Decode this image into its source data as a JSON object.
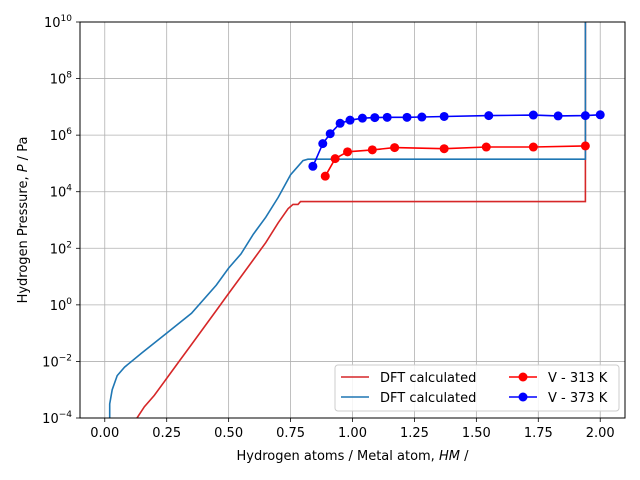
{
  "chart_data": {
    "type": "line",
    "title": "",
    "xlabel_prefix": "Hydrogen atoms / Metal atom, ",
    "xlabel_symbol": "HM",
    "xlabel_suffix": " /",
    "ylabel_prefix": "Hydrogen Pressure, ",
    "ylabel_symbol": "P",
    "ylabel_suffix": " / Pa",
    "xlim": [
      -0.1,
      2.1
    ],
    "ylim_log10": [
      -4,
      10
    ],
    "yscale": "log",
    "grid": true,
    "legend_position": "lower-right",
    "xticks": [
      {
        "v": 0.0,
        "label": "0.00"
      },
      {
        "v": 0.25,
        "label": "0.25"
      },
      {
        "v": 0.5,
        "label": "0.50"
      },
      {
        "v": 0.75,
        "label": "0.75"
      },
      {
        "v": 1.0,
        "label": "1.00"
      },
      {
        "v": 1.25,
        "label": "1.25"
      },
      {
        "v": 1.5,
        "label": "1.50"
      },
      {
        "v": 1.75,
        "label": "1.75"
      },
      {
        "v": 2.0,
        "label": "2.00"
      }
    ],
    "yticks": [
      {
        "exp": -4,
        "label": "−4"
      },
      {
        "exp": -2,
        "label": "−2"
      },
      {
        "exp": 0,
        "label": "0"
      },
      {
        "exp": 2,
        "label": "2"
      },
      {
        "exp": 4,
        "label": "4"
      },
      {
        "exp": 6,
        "label": "6"
      },
      {
        "exp": 8,
        "label": "8"
      },
      {
        "exp": 10,
        "label": "10"
      }
    ],
    "ytick_base": "10",
    "series": [
      {
        "name": "DFT calculated",
        "color": "#d62728",
        "style": "step-line",
        "points": [
          [
            0.13,
            -4.0
          ],
          [
            0.16,
            -3.6
          ],
          [
            0.2,
            -3.2
          ],
          [
            0.25,
            -2.6
          ],
          [
            0.3,
            -2.0
          ],
          [
            0.35,
            -1.4
          ],
          [
            0.4,
            -0.8
          ],
          [
            0.45,
            -0.2
          ],
          [
            0.5,
            0.4
          ],
          [
            0.55,
            1.0
          ],
          [
            0.6,
            1.6
          ],
          [
            0.65,
            2.2
          ],
          [
            0.7,
            2.9
          ],
          [
            0.74,
            3.4
          ],
          [
            0.76,
            3.55
          ],
          [
            0.78,
            3.55
          ],
          [
            0.79,
            3.65
          ],
          [
            1.94,
            3.65
          ],
          [
            1.94,
            10.0
          ]
        ]
      },
      {
        "name": "DFT calculated",
        "color": "#1f77b4",
        "style": "step-line",
        "points": [
          [
            0.02,
            -4.0
          ],
          [
            0.02,
            -3.5
          ],
          [
            0.03,
            -3.0
          ],
          [
            0.05,
            -2.5
          ],
          [
            0.08,
            -2.2
          ],
          [
            0.15,
            -1.7
          ],
          [
            0.25,
            -1.0
          ],
          [
            0.35,
            -0.3
          ],
          [
            0.45,
            0.7
          ],
          [
            0.5,
            1.3
          ],
          [
            0.55,
            1.8
          ],
          [
            0.6,
            2.5
          ],
          [
            0.65,
            3.1
          ],
          [
            0.7,
            3.8
          ],
          [
            0.75,
            4.6
          ],
          [
            0.78,
            4.9
          ],
          [
            0.8,
            5.1
          ],
          [
            0.82,
            5.15
          ],
          [
            1.94,
            5.15
          ],
          [
            1.94,
            10.0
          ]
        ]
      },
      {
        "name": "V - 313 K",
        "color": "#ff0000",
        "style": "line-marker",
        "x": [
          0.89,
          0.93,
          0.98,
          1.08,
          1.17,
          1.37,
          1.54,
          1.73,
          1.94
        ],
        "y": [
          4.55,
          5.17,
          5.41,
          5.48,
          5.56,
          5.52,
          5.58,
          5.58,
          5.62
        ]
      },
      {
        "name": "V - 373 K",
        "color": "#0000ff",
        "style": "line-marker",
        "x": [
          0.84,
          0.88,
          0.91,
          0.95,
          0.99,
          1.04,
          1.09,
          1.14,
          1.22,
          1.28,
          1.37,
          1.55,
          1.73,
          1.83,
          1.94,
          2.0
        ],
        "y": [
          4.9,
          5.7,
          6.05,
          6.42,
          6.53,
          6.6,
          6.62,
          6.63,
          6.63,
          6.64,
          6.66,
          6.69,
          6.71,
          6.68,
          6.69,
          6.72
        ]
      }
    ],
    "legend": [
      {
        "label": "DFT calculated",
        "color": "#d62728",
        "marker": false
      },
      {
        "label": "DFT calculated",
        "color": "#1f77b4",
        "marker": false
      },
      {
        "label": "V - 313 K",
        "color": "#ff0000",
        "marker": true
      },
      {
        "label": "V - 373 K",
        "color": "#0000ff",
        "marker": true
      }
    ]
  }
}
